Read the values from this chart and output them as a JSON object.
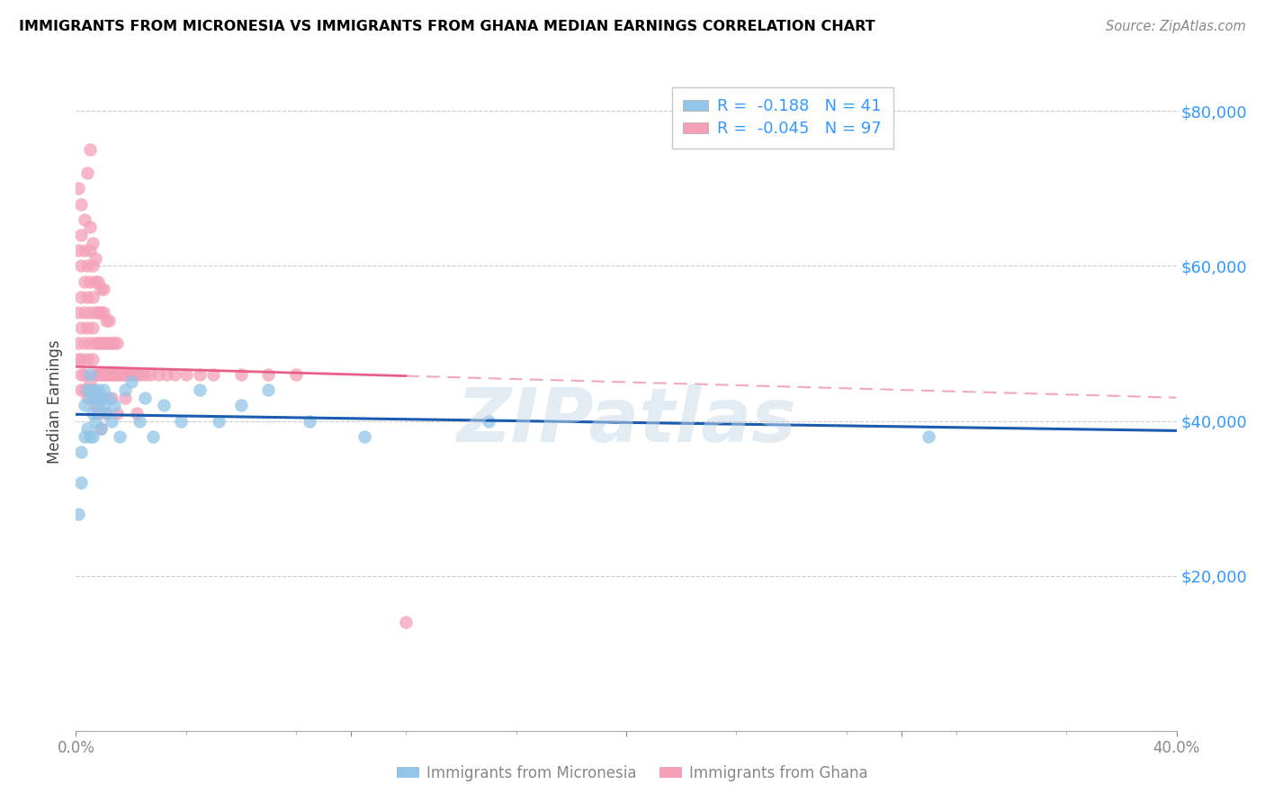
{
  "title": "IMMIGRANTS FROM MICRONESIA VS IMMIGRANTS FROM GHANA MEDIAN EARNINGS CORRELATION CHART",
  "source": "Source: ZipAtlas.com",
  "ylabel": "Median Earnings",
  "yticks": [
    20000,
    40000,
    60000,
    80000
  ],
  "ytick_labels": [
    "$20,000",
    "$40,000",
    "$60,000",
    "$80,000"
  ],
  "xlim": [
    0.0,
    0.4
  ],
  "ylim": [
    0,
    85000
  ],
  "micronesia_color": "#92C5E8",
  "ghana_color": "#F4A0B8",
  "trend_micro_color": "#1A5CB0",
  "trend_ghana_color": "#E8608A",
  "watermark": "ZIPatlas",
  "micro_x": [
    0.001,
    0.002,
    0.002,
    0.003,
    0.003,
    0.004,
    0.004,
    0.005,
    0.005,
    0.005,
    0.006,
    0.006,
    0.006,
    0.007,
    0.007,
    0.008,
    0.008,
    0.009,
    0.009,
    0.01,
    0.01,
    0.011,
    0.012,
    0.013,
    0.014,
    0.016,
    0.018,
    0.02,
    0.023,
    0.025,
    0.028,
    0.032,
    0.038,
    0.045,
    0.052,
    0.06,
    0.07,
    0.085,
    0.105,
    0.15,
    0.31
  ],
  "micro_y": [
    28000,
    32000,
    36000,
    38000,
    42000,
    39000,
    44000,
    43000,
    38000,
    46000,
    41000,
    44000,
    38000,
    43000,
    40000,
    44000,
    42000,
    43000,
    39000,
    44000,
    42000,
    41000,
    43000,
    40000,
    42000,
    38000,
    44000,
    45000,
    40000,
    43000,
    38000,
    42000,
    40000,
    44000,
    40000,
    42000,
    44000,
    40000,
    38000,
    40000,
    38000
  ],
  "ghana_x": [
    0.001,
    0.001,
    0.001,
    0.001,
    0.001,
    0.002,
    0.002,
    0.002,
    0.002,
    0.002,
    0.002,
    0.002,
    0.003,
    0.003,
    0.003,
    0.003,
    0.003,
    0.003,
    0.004,
    0.004,
    0.004,
    0.004,
    0.004,
    0.005,
    0.005,
    0.005,
    0.005,
    0.005,
    0.005,
    0.006,
    0.006,
    0.006,
    0.006,
    0.006,
    0.007,
    0.007,
    0.007,
    0.007,
    0.007,
    0.008,
    0.008,
    0.008,
    0.008,
    0.009,
    0.009,
    0.009,
    0.009,
    0.01,
    0.01,
    0.01,
    0.01,
    0.011,
    0.011,
    0.011,
    0.012,
    0.012,
    0.012,
    0.013,
    0.013,
    0.014,
    0.014,
    0.015,
    0.015,
    0.016,
    0.017,
    0.018,
    0.019,
    0.02,
    0.021,
    0.022,
    0.023,
    0.025,
    0.027,
    0.03,
    0.033,
    0.036,
    0.04,
    0.045,
    0.05,
    0.06,
    0.07,
    0.08,
    0.002,
    0.003,
    0.004,
    0.005,
    0.006,
    0.007,
    0.008,
    0.009,
    0.01,
    0.011,
    0.013,
    0.015,
    0.018,
    0.022,
    0.12
  ],
  "ghana_y": [
    50000,
    48000,
    54000,
    62000,
    70000,
    44000,
    48000,
    52000,
    56000,
    60000,
    64000,
    68000,
    46000,
    50000,
    54000,
    58000,
    62000,
    66000,
    48000,
    52000,
    56000,
    60000,
    72000,
    50000,
    54000,
    58000,
    62000,
    65000,
    75000,
    48000,
    52000,
    56000,
    60000,
    63000,
    46000,
    50000,
    54000,
    58000,
    61000,
    46000,
    50000,
    54000,
    58000,
    46000,
    50000,
    54000,
    57000,
    46000,
    50000,
    54000,
    57000,
    46000,
    50000,
    53000,
    46000,
    50000,
    53000,
    46000,
    50000,
    46000,
    50000,
    46000,
    50000,
    46000,
    46000,
    46000,
    46000,
    46000,
    46000,
    46000,
    46000,
    46000,
    46000,
    46000,
    46000,
    46000,
    46000,
    46000,
    46000,
    46000,
    46000,
    46000,
    46000,
    44000,
    43000,
    45000,
    44000,
    42000,
    41000,
    39000,
    43000,
    41000,
    43000,
    41000,
    43000,
    41000,
    14000
  ]
}
